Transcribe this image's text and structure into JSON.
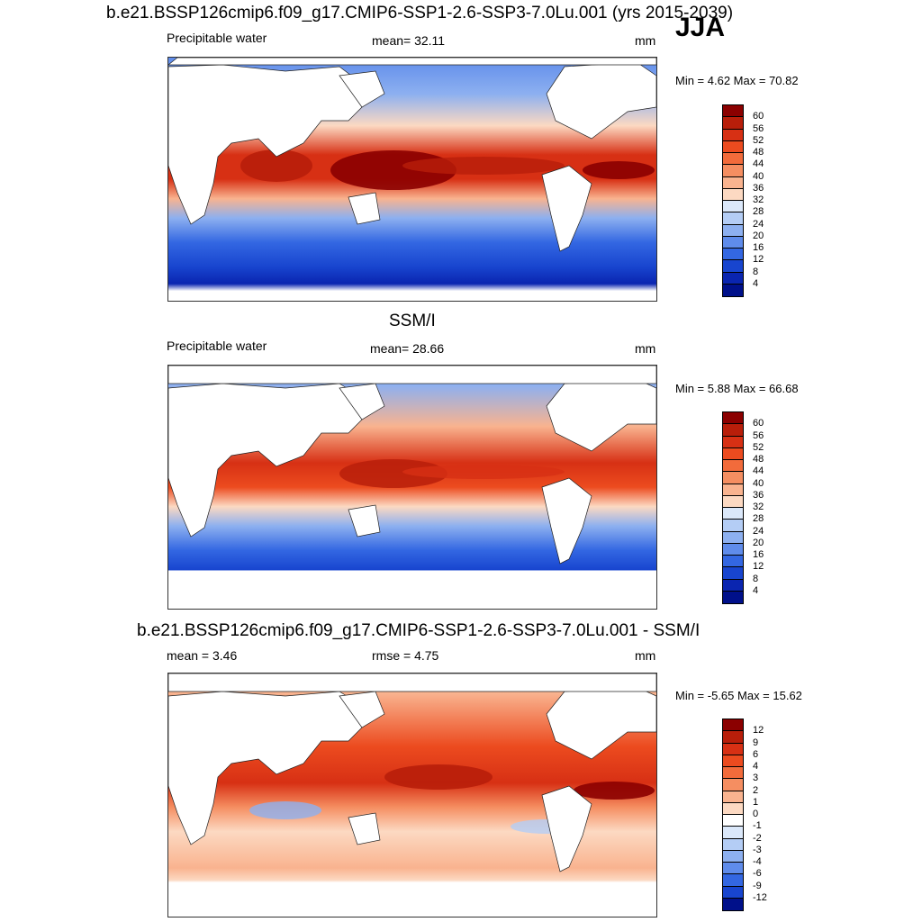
{
  "season": "JJA",
  "panels": [
    {
      "title": "b.e21.BSSP126cmip6.f09_g17.CMIP6-SSP1-2.6-SSP3-7.0Lu.001 (yrs 2015-2039)",
      "left": "Precipitable water",
      "center": "mean=  32.11",
      "right": "mm",
      "minmax": "Min =   4.62 Max =  70.82",
      "colorbar_labels": [
        "60",
        "56",
        "52",
        "48",
        "44",
        "40",
        "36",
        "32",
        "28",
        "24",
        "20",
        "16",
        "12",
        "8",
        "4"
      ],
      "colors": [
        "#8b0000",
        "#b81e0a",
        "#d73014",
        "#ec4b1f",
        "#f26b3b",
        "#f58e61",
        "#f9b38f",
        "#fcd9c2",
        "#dbe8fa",
        "#b4cdf5",
        "#8db0f0",
        "#5f8ceb",
        "#3367e2",
        "#1845cf",
        "#0a25b0",
        "#00108a"
      ]
    },
    {
      "title": "SSM/I",
      "left": "Precipitable water",
      "center": "mean=  28.66",
      "right": "mm",
      "minmax": "Min =   5.88 Max =  66.68",
      "colorbar_labels": [
        "60",
        "56",
        "52",
        "48",
        "44",
        "40",
        "36",
        "32",
        "28",
        "24",
        "20",
        "16",
        "12",
        "8",
        "4"
      ],
      "colors": [
        "#8b0000",
        "#b81e0a",
        "#d73014",
        "#ec4b1f",
        "#f26b3b",
        "#f58e61",
        "#f9b38f",
        "#fcd9c2",
        "#dbe8fa",
        "#b4cdf5",
        "#8db0f0",
        "#5f8ceb",
        "#3367e2",
        "#1845cf",
        "#0a25b0",
        "#00108a"
      ]
    },
    {
      "title": "b.e21.BSSP126cmip6.f09_g17.CMIP6-SSP1-2.6-SSP3-7.0Lu.001 - SSM/I",
      "left": "mean =   3.46",
      "center": "rmse =   4.75",
      "right": "mm",
      "minmax": "Min =  -5.65 Max =  15.62",
      "colorbar_labels": [
        "12",
        "9",
        "6",
        "4",
        "3",
        "2",
        "1",
        "0",
        "-1",
        "-2",
        "-3",
        "-4",
        "-6",
        "-9",
        "-12"
      ],
      "colors": [
        "#8b0000",
        "#b81e0a",
        "#d73014",
        "#ec4b1f",
        "#f26b3b",
        "#f58e61",
        "#f9b38f",
        "#fcd9c2",
        "#ffffff",
        "#dbe8fa",
        "#b4cdf5",
        "#8db0f0",
        "#5f8ceb",
        "#3367e2",
        "#1845cf",
        "#00108a"
      ]
    }
  ]
}
